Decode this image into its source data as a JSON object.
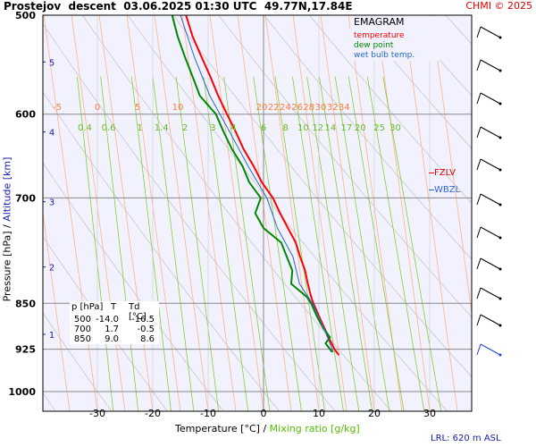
{
  "header": {
    "title_left": "Prostejov  descent  03.06.2025 01:30 UTC  49.77N,17.84E",
    "copyright": "CHMI © 2025"
  },
  "legend": {
    "title": "EMAGRAM",
    "items": [
      {
        "label": "temperature",
        "color": "#ff0000"
      },
      {
        "label": "dew point",
        "color": "#008800"
      },
      {
        "label": "wet bulb temp.",
        "color": "#2a66cc"
      }
    ]
  },
  "levels": {
    "fzlv_label": "FZLV",
    "wbzl_label": "WBZL",
    "fzlv_color": "#dd0000",
    "wbzl_color": "#2a66cc"
  },
  "table": {
    "headers": [
      "p [hPa]",
      "T",
      "Td [°C]"
    ],
    "rows": [
      [
        "500",
        "-14.0",
        "-16.5"
      ],
      [
        "700",
        "1.7",
        "-0.5"
      ],
      [
        "850",
        "9.0",
        "8.6"
      ]
    ]
  },
  "axes": {
    "ylabel_pressure": "Pressure [hPa]",
    "ylabel_sep": "/",
    "ylabel_altitude": "Altitude [km]",
    "xlabel_temp": "Temperature [°C]",
    "xlabel_sep": "/",
    "xlabel_mix": "Mixing ratio [g/kg]"
  },
  "footer": {
    "lrl": "LRL: 620 m ASL"
  },
  "chart_data": {
    "type": "line",
    "title": "EMAGRAM",
    "xlabel": "Temperature [°C] / Mixing ratio [g/kg]",
    "ylabel": "Pressure [hPa] / Altitude [km]",
    "xlim": [
      -39,
      39
    ],
    "ylim": [
      1050,
      500
    ],
    "y_scale": "log",
    "pressure_ticks": [
      500,
      600,
      700,
      850,
      925,
      1000
    ],
    "temperature_ticks": [
      -30,
      -20,
      -10,
      0,
      10,
      20,
      30
    ],
    "altitude_ticks": [
      {
        "km": "1",
        "p": 900
      },
      {
        "km": "2",
        "p": 795
      },
      {
        "km": "3",
        "p": 705
      },
      {
        "km": "4",
        "p": 620
      },
      {
        "km": "5",
        "p": 545
      }
    ],
    "isotherm_labels": [
      "-5",
      "0",
      "5",
      "10",
      "20",
      "22",
      "24",
      "26",
      "28",
      "30",
      "32",
      "34"
    ],
    "isotherm_label_values": [
      -5,
      0,
      5,
      10,
      20,
      22,
      24,
      26,
      28,
      30,
      32,
      34
    ],
    "mixing_ratio_labels": [
      "0.4",
      "0.6",
      "1",
      "1.4",
      "2",
      "3",
      "4",
      "6",
      "8",
      "10",
      "12",
      "14",
      "17",
      "20",
      "25",
      "30"
    ],
    "mixing_ratio_values": [
      0.4,
      0.6,
      1,
      1.4,
      2,
      3,
      4,
      6,
      8,
      10,
      12,
      14,
      17,
      20,
      25,
      30
    ],
    "grid": true,
    "series": [
      {
        "name": "temperature",
        "color": "#ff0000",
        "points": [
          [
            500,
            -14.0
          ],
          [
            520,
            -12.8
          ],
          [
            540,
            -11.2
          ],
          [
            560,
            -9.6
          ],
          [
            580,
            -8.2
          ],
          [
            600,
            -6.6
          ],
          [
            620,
            -5.0
          ],
          [
            640,
            -3.6
          ],
          [
            660,
            -1.8
          ],
          [
            680,
            -0.3
          ],
          [
            700,
            1.7
          ],
          [
            720,
            3.0
          ],
          [
            740,
            4.4
          ],
          [
            760,
            5.8
          ],
          [
            780,
            6.6
          ],
          [
            800,
            7.5
          ],
          [
            820,
            8.0
          ],
          [
            840,
            8.6
          ],
          [
            850,
            9.0
          ],
          [
            870,
            10.0
          ],
          [
            890,
            11.0
          ],
          [
            910,
            12.0
          ],
          [
            925,
            12.8
          ],
          [
            935,
            13.6
          ]
        ]
      },
      {
        "name": "dew point",
        "color": "#008800",
        "points": [
          [
            500,
            -16.5
          ],
          [
            520,
            -15.5
          ],
          [
            540,
            -14.2
          ],
          [
            560,
            -12.8
          ],
          [
            580,
            -11.5
          ],
          [
            600,
            -8.6
          ],
          [
            620,
            -7.2
          ],
          [
            640,
            -5.7
          ],
          [
            660,
            -3.8
          ],
          [
            680,
            -2.6
          ],
          [
            700,
            -0.5
          ],
          [
            720,
            -1.5
          ],
          [
            740,
            0.0
          ],
          [
            760,
            3.2
          ],
          [
            780,
            4.2
          ],
          [
            800,
            5.2
          ],
          [
            820,
            5.0
          ],
          [
            840,
            7.8
          ],
          [
            850,
            8.6
          ],
          [
            870,
            9.6
          ],
          [
            890,
            10.8
          ],
          [
            905,
            12.0
          ],
          [
            915,
            11.2
          ],
          [
            930,
            12.4
          ]
        ]
      },
      {
        "name": "wet bulb temp.",
        "color": "#2a66cc",
        "points": [
          [
            500,
            -15.0
          ],
          [
            540,
            -12.5
          ],
          [
            580,
            -9.7
          ],
          [
            620,
            -6.1
          ],
          [
            660,
            -2.8
          ],
          [
            700,
            0.6
          ],
          [
            740,
            2.5
          ],
          [
            780,
            5.3
          ],
          [
            820,
            6.5
          ],
          [
            850,
            8.8
          ],
          [
            890,
            10.9
          ],
          [
            930,
            12.6
          ]
        ]
      }
    ]
  }
}
